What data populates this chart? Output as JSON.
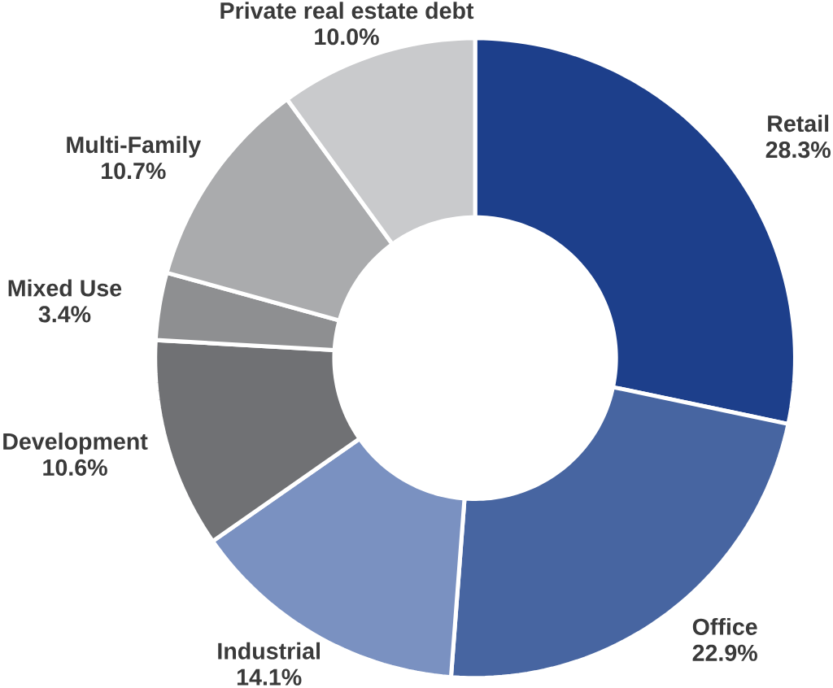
{
  "chart_data": {
    "type": "donut",
    "categories": [
      "Retail",
      "Office",
      "Industrial",
      "Development",
      "Mixed Use",
      "Multi-Family",
      "Private real estate debt"
    ],
    "values": [
      28.3,
      22.9,
      14.1,
      10.6,
      3.4,
      10.7,
      10.0
    ],
    "value_labels": [
      "28.3%",
      "22.9%",
      "14.1%",
      "10.6%",
      "3.4%",
      "10.7%",
      "10.0%"
    ],
    "colors": [
      "#1d3f8b",
      "#4765a1",
      "#7a91c1",
      "#707174",
      "#8e8f91",
      "#aaabad",
      "#c9cacc"
    ]
  }
}
